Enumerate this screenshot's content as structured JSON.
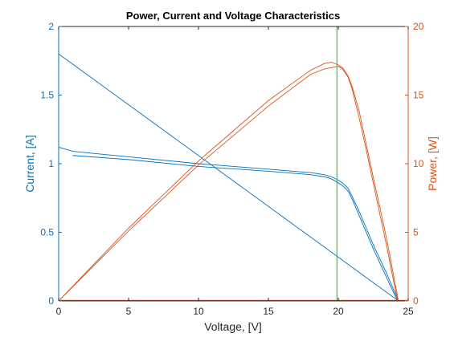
{
  "chart_data": {
    "type": "line",
    "title": "Power, Current and Voltage Characteristics",
    "xlabel": "Voltage, [V]",
    "ylabel_left": "Current, [A]",
    "ylabel_right": "Power, [W]",
    "xlim": [
      0,
      25
    ],
    "ylim_left": [
      0,
      2
    ],
    "ylim_right": [
      0,
      20
    ],
    "x_ticks": [
      "0",
      "5",
      "10",
      "15",
      "20",
      "25"
    ],
    "y_left_ticks": [
      "0",
      "0.5",
      "1",
      "1.5",
      "2"
    ],
    "y_right_ticks": [
      "0",
      "5",
      "10",
      "15",
      "20"
    ],
    "colors": {
      "current": "#0072BD",
      "power": "#D95319",
      "marker": "#00CC00",
      "axis": "#262626"
    },
    "series": [
      {
        "axis": "left",
        "style": "current",
        "x": [
          0,
          24.3
        ],
        "y": [
          1.8,
          0
        ]
      },
      {
        "axis": "left",
        "style": "current",
        "x": [
          0,
          1,
          5,
          10,
          15,
          18,
          19,
          19.5,
          20,
          20.3,
          20.7,
          21,
          21.5,
          22,
          22.5,
          23,
          23.5,
          24,
          24.3
        ],
        "y": [
          1.12,
          1.09,
          1.05,
          1.0,
          0.96,
          0.935,
          0.92,
          0.905,
          0.88,
          0.86,
          0.82,
          0.76,
          0.65,
          0.53,
          0.41,
          0.3,
          0.19,
          0.07,
          0
        ]
      },
      {
        "axis": "left",
        "style": "current",
        "x": [
          1,
          5,
          10,
          15,
          18,
          19,
          19.5,
          20,
          20.3,
          20.7,
          21,
          21.5,
          22,
          22.5,
          23,
          23.5,
          24,
          24.25
        ],
        "y": [
          1.06,
          1.03,
          0.98,
          0.945,
          0.92,
          0.905,
          0.89,
          0.86,
          0.84,
          0.8,
          0.74,
          0.62,
          0.5,
          0.38,
          0.27,
          0.16,
          0.05,
          0
        ]
      },
      {
        "axis": "right",
        "style": "power",
        "x": [
          0,
          5,
          10,
          15,
          18,
          19,
          19.5,
          20,
          20.3,
          20.7,
          21,
          21.5,
          22,
          22.5,
          23,
          23.5,
          24,
          24.3
        ],
        "y": [
          0,
          5.3,
          10.2,
          14.6,
          16.8,
          17.3,
          17.4,
          17.2,
          17.0,
          16.4,
          15.6,
          13.8,
          11.4,
          9.0,
          6.7,
          4.3,
          1.6,
          0
        ]
      },
      {
        "axis": "right",
        "style": "power",
        "x": [
          0,
          5,
          10,
          15,
          18,
          19,
          19.5,
          20,
          20.3,
          20.7,
          21,
          21.5,
          22,
          22.5,
          23,
          23.5,
          24,
          24.25
        ],
        "y": [
          0,
          5.1,
          9.9,
          14.2,
          16.5,
          16.9,
          17.0,
          17.1,
          16.9,
          16.3,
          15.4,
          13.3,
          11.0,
          8.6,
          6.2,
          3.8,
          1.2,
          0
        ]
      },
      {
        "axis": "right",
        "style": "power",
        "x": [
          0,
          25
        ],
        "y": [
          0.05,
          0.05
        ]
      },
      {
        "axis": "left",
        "style": "marker",
        "x": [
          19.9,
          19.9
        ],
        "y": [
          0,
          2
        ]
      }
    ]
  }
}
